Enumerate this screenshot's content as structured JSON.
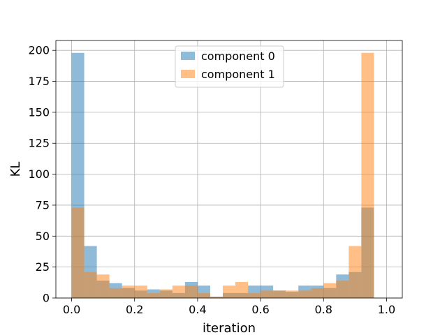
{
  "chart_data": {
    "type": "bar",
    "subtype": "overlapping-histogram",
    "title": "",
    "xlabel": "iteration",
    "ylabel": "KL",
    "xlim": [
      -0.05,
      1.05
    ],
    "ylim": [
      0,
      208
    ],
    "xticks": [
      0.0,
      0.2,
      0.4,
      0.6,
      0.8,
      1.0
    ],
    "xtick_labels": [
      "0.0",
      "0.2",
      "0.4",
      "0.6",
      "0.8",
      "1.0"
    ],
    "yticks": [
      0,
      25,
      50,
      75,
      100,
      125,
      150,
      175,
      200
    ],
    "ytick_labels": [
      "0",
      "25",
      "50",
      "75",
      "100",
      "125",
      "150",
      "175",
      "200"
    ],
    "grid": true,
    "legend": "top-center",
    "bin_start": 0.0,
    "bin_width": 0.04,
    "series": [
      {
        "name": "component 0",
        "color": "#1f77b4",
        "alpha": 0.5,
        "values": [
          198,
          42,
          14,
          12,
          8,
          6,
          7,
          6,
          4,
          13,
          10,
          1,
          4,
          4,
          10,
          10,
          6,
          5,
          10,
          10,
          8,
          19,
          21,
          73
        ]
      },
      {
        "name": "component 1",
        "color": "#ff7f0e",
        "alpha": 0.5,
        "values": [
          73,
          21,
          19,
          8,
          10,
          10,
          4,
          7,
          10,
          10,
          4,
          1,
          10,
          13,
          4,
          6,
          6,
          6,
          6,
          8,
          12,
          14,
          42,
          198
        ]
      }
    ]
  }
}
